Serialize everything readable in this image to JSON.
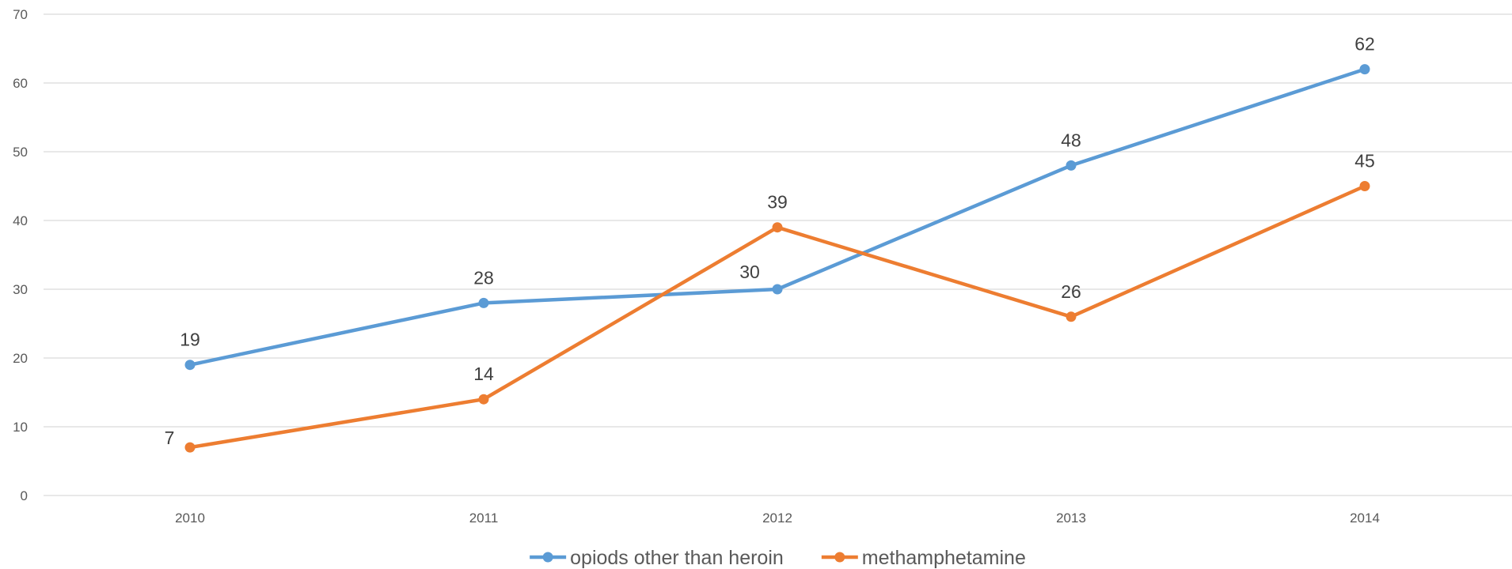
{
  "chart_data": {
    "type": "line",
    "categories": [
      "2010",
      "2011",
      "2012",
      "2013",
      "2014"
    ],
    "series": [
      {
        "name": "opiods other than heroin",
        "values": [
          19,
          28,
          30,
          48,
          62
        ],
        "color": "#5B9BD5"
      },
      {
        "name": "methamphetamine",
        "values": [
          7,
          14,
          39,
          26,
          45
        ],
        "color": "#ED7D31"
      }
    ],
    "ylim": [
      0,
      70
    ],
    "yticks": [
      0,
      10,
      20,
      30,
      40,
      50,
      60,
      70
    ],
    "grid": true,
    "gridColor": "#D9D9D9",
    "legend": "bottom-center",
    "data_labels": true
  }
}
